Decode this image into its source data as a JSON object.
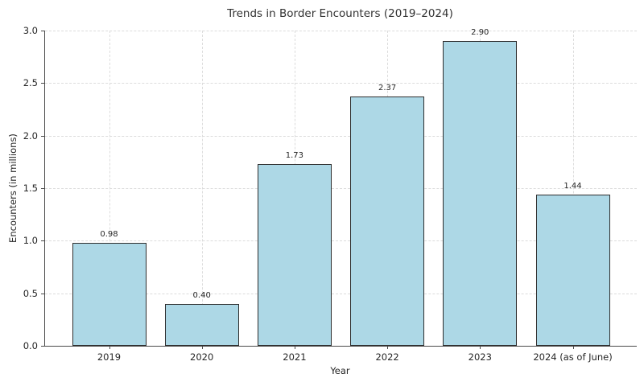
{
  "chart_data": {
    "type": "bar",
    "title": "Trends in Border Encounters (2019–2024)",
    "xlabel": "Year",
    "ylabel": "Encounters (in millions)",
    "categories": [
      "2019",
      "2020",
      "2021",
      "2022",
      "2023",
      "2024 (as of June)"
    ],
    "values": [
      0.98,
      0.4,
      1.73,
      2.37,
      2.9,
      1.44
    ],
    "value_labels": [
      "0.98",
      "0.40",
      "1.73",
      "2.37",
      "2.90",
      "1.44"
    ],
    "ylim": [
      0.0,
      3.0
    ],
    "yticks": [
      0.0,
      0.5,
      1.0,
      1.5,
      2.0,
      2.5,
      3.0
    ],
    "ytick_labels": [
      "0.0",
      "0.5",
      "1.0",
      "1.5",
      "2.0",
      "2.5",
      "3.0"
    ],
    "grid": "both-dashed",
    "legend": "none",
    "bar_color": "#ADD8E6",
    "bar_edge_color": "#2e2e2e",
    "grid_color": "#dcdcdc",
    "spine_color": "#4a4a4a",
    "text_color": "#262626",
    "title_color": "#333333"
  }
}
